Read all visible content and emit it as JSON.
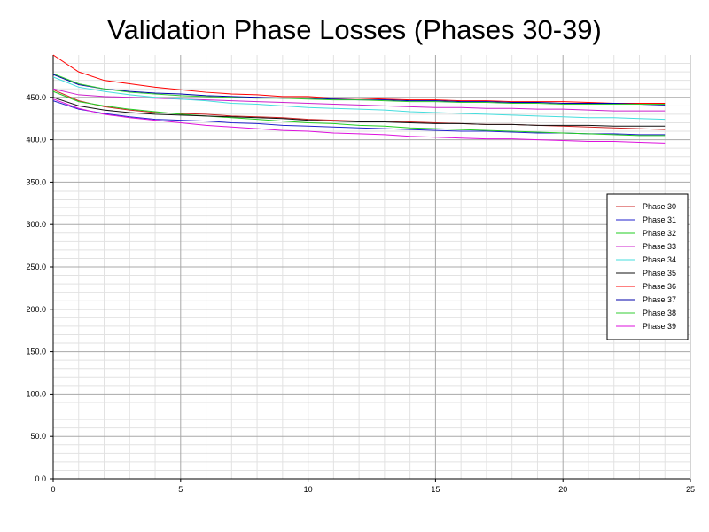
{
  "chart_data": {
    "type": "line",
    "title": "Validation Phase Losses (Phases 30-39)",
    "xlabel": "",
    "ylabel": "",
    "xlim": [
      0,
      25
    ],
    "ylim": [
      0,
      500
    ],
    "x_ticks": [
      "0",
      "5",
      "10",
      "15",
      "20",
      "25"
    ],
    "y_ticks": [
      "0.0",
      "50.0",
      "100.0",
      "150.0",
      "200.0",
      "250.0",
      "300.0",
      "350.0",
      "400.0",
      "450.0"
    ],
    "grid": true,
    "legend_position": "right",
    "x": [
      0,
      1,
      2,
      3,
      4,
      5,
      6,
      7,
      8,
      9,
      10,
      11,
      12,
      13,
      14,
      15,
      16,
      17,
      18,
      19,
      20,
      21,
      22,
      23,
      24
    ],
    "series": [
      {
        "name": "Phase 30",
        "color": "#cc2222",
        "values": [
          459,
          446,
          439,
          435,
          432,
          431,
          430,
          428,
          427,
          426,
          424,
          423,
          422,
          422,
          421,
          420,
          419,
          418,
          418,
          417,
          416,
          415,
          414,
          413,
          412
        ]
      },
      {
        "name": "Phase 31",
        "color": "#2222cc",
        "values": [
          446,
          436,
          431,
          427,
          424,
          423,
          422,
          420,
          419,
          417,
          416,
          415,
          414,
          413,
          412,
          411,
          410,
          410,
          409,
          408,
          408,
          407,
          407,
          406,
          406
        ]
      },
      {
        "name": "Phase 32",
        "color": "#22cc22",
        "values": [
          457,
          445,
          440,
          436,
          433,
          430,
          428,
          426,
          424,
          422,
          420,
          419,
          417,
          416,
          414,
          413,
          412,
          411,
          410,
          409,
          408,
          407,
          406,
          405,
          405
        ]
      },
      {
        "name": "Phase 33",
        "color": "#cc22cc",
        "values": [
          460,
          453,
          451,
          450,
          449,
          448,
          447,
          446,
          445,
          444,
          443,
          442,
          441,
          440,
          439,
          438,
          438,
          437,
          437,
          436,
          436,
          435,
          434,
          434,
          434
        ]
      },
      {
        "name": "Phase 34",
        "color": "#44dddd",
        "values": [
          474,
          462,
          457,
          453,
          450,
          448,
          446,
          443,
          442,
          440,
          438,
          437,
          436,
          435,
          433,
          432,
          431,
          430,
          429,
          428,
          427,
          426,
          426,
          425,
          424
        ]
      },
      {
        "name": "Phase 35",
        "color": "#111111",
        "values": [
          450,
          440,
          435,
          432,
          430,
          429,
          428,
          427,
          426,
          425,
          423,
          422,
          421,
          421,
          420,
          419,
          419,
          418,
          418,
          417,
          417,
          417,
          416,
          416,
          416
        ]
      },
      {
        "name": "Phase 36",
        "color": "#ff0000",
        "values": [
          500,
          480,
          470,
          466,
          462,
          459,
          456,
          454,
          453,
          451,
          451,
          449,
          449,
          448,
          447,
          447,
          446,
          446,
          445,
          445,
          445,
          444,
          443,
          443,
          443
        ]
      },
      {
        "name": "Phase 37",
        "color": "#0000aa",
        "values": [
          477,
          465,
          460,
          457,
          455,
          454,
          452,
          451,
          450,
          449,
          449,
          448,
          447,
          447,
          446,
          446,
          445,
          445,
          444,
          444,
          443,
          443,
          443,
          442,
          441
        ]
      },
      {
        "name": "Phase 38",
        "color": "#33cc33",
        "values": [
          478,
          466,
          460,
          456,
          454,
          452,
          451,
          450,
          449,
          449,
          448,
          447,
          447,
          446,
          445,
          445,
          444,
          444,
          443,
          443,
          442,
          442,
          442,
          442,
          442
        ]
      },
      {
        "name": "Phase 39",
        "color": "#dd11dd",
        "values": [
          448,
          437,
          430,
          426,
          423,
          420,
          417,
          415,
          413,
          411,
          410,
          408,
          407,
          406,
          404,
          403,
          402,
          401,
          401,
          400,
          399,
          398,
          398,
          397,
          396
        ]
      }
    ]
  }
}
